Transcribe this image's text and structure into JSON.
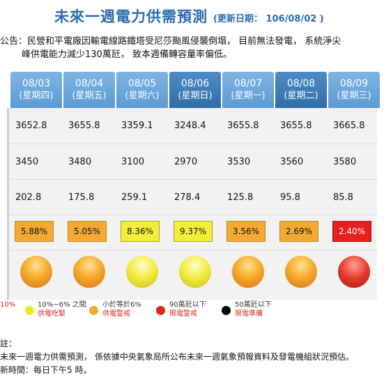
{
  "header": {
    "title": "未來一週電力供需預測",
    "update": "(更新日期： 106/08/02 )"
  },
  "notice": {
    "line1": "公告：民營和平電廠因輸電線路鐵塔受尼莎颱風侵襲倒塌， 目前無法發電， 系統淨尖",
    "line2": "峰供電能力減少130萬瓩， 致本週備轉容量率偏低。"
  },
  "days": [
    {
      "date": "08/03",
      "weekday": "(星期四)",
      "supply": "3652.8",
      "demand": "3450",
      "reserve": "202.8",
      "rate": "5.88%",
      "level": "orange"
    },
    {
      "date": "08/04",
      "weekday": "(星期五)",
      "supply": "3655.8",
      "demand": "3480",
      "reserve": "175.8",
      "rate": "5.05%",
      "level": "orange"
    },
    {
      "date": "08/05",
      "weekday": "(星期六)",
      "supply": "3359.1",
      "demand": "3100",
      "reserve": "259.1",
      "rate": "8.36%",
      "level": "yellow"
    },
    {
      "date": "08/06",
      "weekday": "(星期日)",
      "supply": "3248.4",
      "demand": "2970",
      "reserve": "278.4",
      "rate": "9.37%",
      "level": "yellow"
    },
    {
      "date": "08/07",
      "weekday": "(星期一)",
      "supply": "3655.8",
      "demand": "3530",
      "reserve": "125.8",
      "rate": "3.56%",
      "level": "orange"
    },
    {
      "date": "08/08",
      "weekday": "(星期二)",
      "supply": "3655.8",
      "demand": "3560",
      "reserve": "95.8",
      "rate": "2.69%",
      "level": "orange"
    },
    {
      "date": "08/09",
      "weekday": "(星期三)",
      "supply": "3665.8",
      "demand": "3580",
      "reserve": "85.8",
      "rate": "2.40%",
      "level": "red"
    }
  ],
  "legend": [
    {
      "line1": "10%",
      "line2": "",
      "color": "#2b9a3a"
    },
    {
      "line1": "10%~6% 之間",
      "line2": "供電吃緊",
      "color": "#f2e82a"
    },
    {
      "line1": "小於等於6%",
      "line2": "供電警戒",
      "color": "#f4a933"
    },
    {
      "line1": "90萬瓩以下",
      "line2": "限電警戒",
      "color": "#e3261a"
    },
    {
      "line1": "50萬瓩以下",
      "line2": "限電準備",
      "color": "#000000"
    }
  ],
  "footer": {
    "line1": "註：",
    "line2": "未來一週電力供需預測， 係依據中央氣象局所公布未來一週氣象預報資料及發電機組狀況預估。",
    "line3": "新時間：每日下午5 時。"
  },
  "colors": {
    "title_blue": "#2a6bb0",
    "header_light": "#6aa6dc",
    "header_dark": "#3a7bb8",
    "orange": "#f4a933",
    "yellow": "#f4ee3a",
    "red": "#e5201f"
  }
}
